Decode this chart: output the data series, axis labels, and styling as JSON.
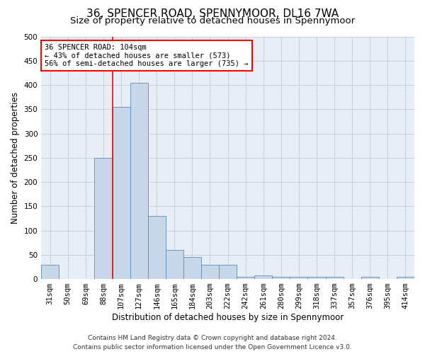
{
  "title": "36, SPENCER ROAD, SPENNYMOOR, DL16 7WA",
  "subtitle": "Size of property relative to detached houses in Spennymoor",
  "xlabel": "Distribution of detached houses by size in Spennymoor",
  "ylabel": "Number of detached properties",
  "categories": [
    "31sqm",
    "50sqm",
    "69sqm",
    "88sqm",
    "107sqm",
    "127sqm",
    "146sqm",
    "165sqm",
    "184sqm",
    "203sqm",
    "222sqm",
    "242sqm",
    "261sqm",
    "280sqm",
    "299sqm",
    "318sqm",
    "337sqm",
    "357sqm",
    "376sqm",
    "395sqm",
    "414sqm"
  ],
  "bar_values": [
    30,
    0,
    0,
    250,
    355,
    405,
    130,
    60,
    45,
    30,
    30,
    5,
    8,
    5,
    5,
    5,
    5,
    0,
    5,
    0,
    5
  ],
  "bar_color": "#c8d8ea",
  "bar_edge_color": "#5b8db8",
  "grid_color": "#c8d0dc",
  "bg_color": "#e8eef6",
  "annotation_text_line1": "36 SPENCER ROAD: 104sqm",
  "annotation_text_line2": "← 43% of detached houses are smaller (573)",
  "annotation_text_line3": "56% of semi-detached houses are larger (735) →",
  "footer1": "Contains HM Land Registry data © Crown copyright and database right 2024.",
  "footer2": "Contains public sector information licensed under the Open Government Licence v3.0.",
  "ylim": [
    0,
    500
  ],
  "yticks": [
    0,
    50,
    100,
    150,
    200,
    250,
    300,
    350,
    400,
    450,
    500
  ],
  "title_fontsize": 11,
  "subtitle_fontsize": 9.5,
  "ylabel_fontsize": 8.5,
  "xlabel_fontsize": 8.5,
  "tick_fontsize": 7.5,
  "annotation_fontsize": 7.5,
  "footer_fontsize": 6.5
}
